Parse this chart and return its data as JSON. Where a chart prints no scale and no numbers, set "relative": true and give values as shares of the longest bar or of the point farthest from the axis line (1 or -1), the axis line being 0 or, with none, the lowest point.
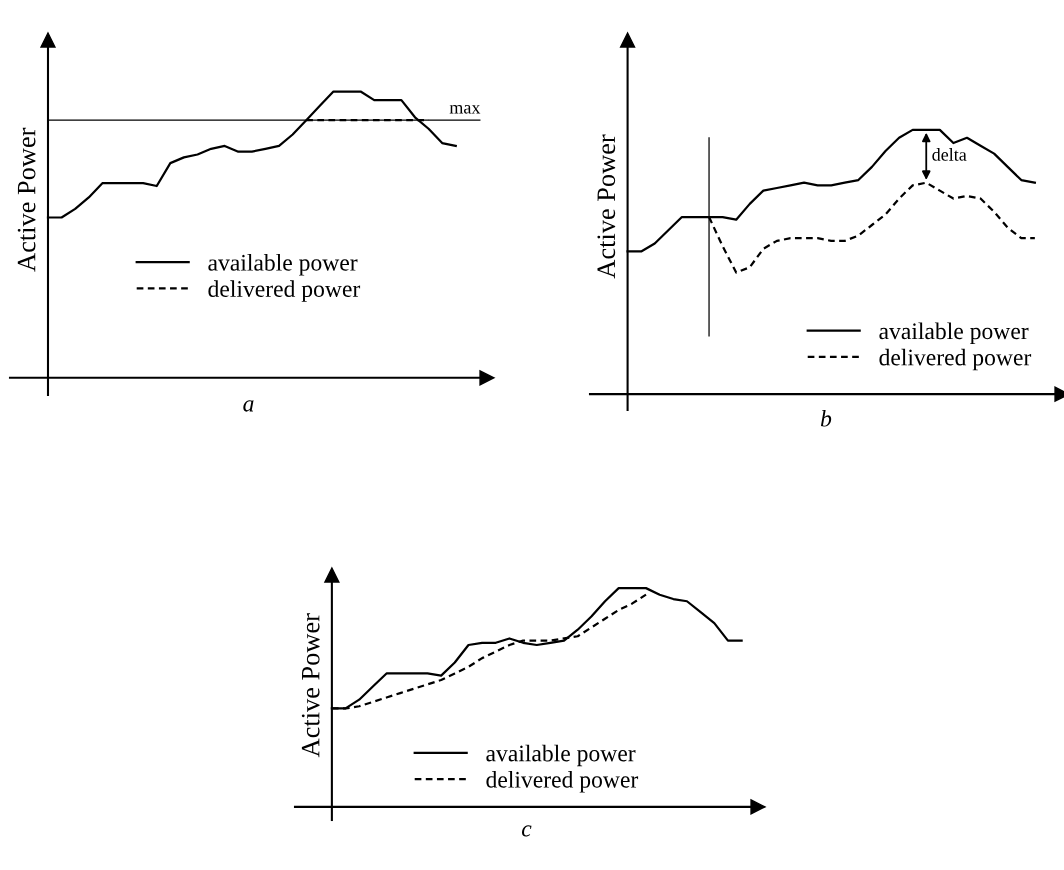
{
  "chart_data": [
    {
      "type": "line",
      "relative": true,
      "xlabel": "a",
      "ylabel": "Active Power",
      "legend": "bottom",
      "tick_labels": false,
      "categories": [
        null,
        null,
        null,
        null,
        null,
        null,
        null,
        null,
        null,
        null,
        null,
        null,
        null,
        null,
        null,
        null,
        null,
        null,
        null,
        null,
        null,
        null,
        null,
        null,
        null,
        null,
        null,
        null,
        null,
        null,
        null
      ],
      "series": [
        {
          "name": "available power",
          "color": "#000000",
          "line_style": "solid",
          "values": [
            0.56,
            0.56,
            0.59,
            0.63,
            0.68,
            0.68,
            0.68,
            0.68,
            0.67,
            0.75,
            0.77,
            0.78,
            0.8,
            0.81,
            0.79,
            0.79,
            0.8,
            0.81,
            0.85,
            0.9,
            0.95,
            1.0,
            1.0,
            1.0,
            0.97,
            0.97,
            0.97,
            0.91,
            0.87,
            0.82,
            0.81
          ]
        },
        {
          "name": "delivered power",
          "color": "#000000",
          "line_style": "dashed",
          "values": [
            null,
            null,
            null,
            null,
            null,
            null,
            null,
            null,
            null,
            null,
            null,
            null,
            null,
            null,
            null,
            null,
            null,
            null,
            null,
            0.9,
            0.9,
            0.9,
            0.9,
            0.9,
            0.9,
            0.9,
            0.9,
            0.9,
            0.9,
            null,
            null
          ]
        }
      ],
      "ref_lines": [
        {
          "axis": "y",
          "value": 0.9,
          "label": "max",
          "color": "#000000"
        }
      ]
    },
    {
      "type": "line",
      "relative": true,
      "xlabel": "b",
      "ylabel": "Active Power",
      "legend": "bottom right",
      "tick_labels": false,
      "categories": [
        null,
        null,
        null,
        null,
        null,
        null,
        null,
        null,
        null,
        null,
        null,
        null,
        null,
        null,
        null,
        null,
        null,
        null,
        null,
        null,
        null,
        null,
        null,
        null,
        null,
        null,
        null,
        null,
        null,
        null,
        null
      ],
      "series": [
        {
          "name": "available power",
          "color": "#000000",
          "line_style": "solid",
          "values": [
            0.54,
            0.54,
            0.57,
            0.62,
            0.67,
            0.67,
            0.67,
            0.67,
            0.66,
            0.72,
            0.77,
            0.78,
            0.79,
            0.8,
            0.79,
            0.79,
            0.8,
            0.81,
            0.86,
            0.92,
            0.97,
            1.0,
            1.0,
            1.0,
            0.95,
            0.97,
            0.94,
            0.91,
            0.86,
            0.81,
            0.8
          ]
        },
        {
          "name": "delivered power",
          "color": "#000000",
          "line_style": "dashed",
          "values": [
            null,
            null,
            null,
            null,
            null,
            null,
            0.67,
            0.56,
            0.46,
            0.48,
            0.55,
            0.58,
            0.59,
            0.59,
            0.59,
            0.58,
            0.58,
            0.6,
            0.64,
            0.68,
            0.74,
            0.79,
            0.8,
            0.77,
            0.74,
            0.75,
            0.74,
            0.69,
            0.63,
            0.59,
            0.59
          ]
        }
      ],
      "annotations": [
        "delta"
      ]
    },
    {
      "type": "line",
      "relative": true,
      "xlabel": "c",
      "ylabel": "Active Power",
      "legend": "bottom",
      "tick_labels": false,
      "categories": [
        null,
        null,
        null,
        null,
        null,
        null,
        null,
        null,
        null,
        null,
        null,
        null,
        null,
        null,
        null,
        null,
        null,
        null,
        null,
        null,
        null,
        null,
        null,
        null,
        null,
        null,
        null,
        null,
        null,
        null,
        null
      ],
      "series": [
        {
          "name": "available power",
          "color": "#000000",
          "line_style": "solid",
          "values": [
            0.45,
            0.45,
            0.49,
            0.55,
            0.61,
            0.61,
            0.61,
            0.61,
            0.6,
            0.66,
            0.74,
            0.75,
            0.75,
            0.77,
            0.75,
            0.74,
            0.75,
            0.76,
            0.81,
            0.87,
            0.94,
            1.0,
            1.0,
            1.0,
            0.97,
            0.95,
            0.94,
            0.89,
            0.84,
            0.76,
            0.76
          ]
        },
        {
          "name": "delivered power",
          "color": "#000000",
          "line_style": "dashed",
          "values": [
            0.45,
            0.45,
            0.46,
            0.48,
            0.5,
            0.52,
            0.54,
            0.56,
            0.58,
            0.61,
            0.64,
            0.68,
            0.71,
            0.74,
            0.76,
            0.76,
            0.76,
            0.77,
            0.78,
            0.82,
            0.86,
            0.9,
            0.93,
            0.97,
            null,
            null,
            null,
            null,
            null,
            null,
            null
          ]
        }
      ]
    }
  ]
}
